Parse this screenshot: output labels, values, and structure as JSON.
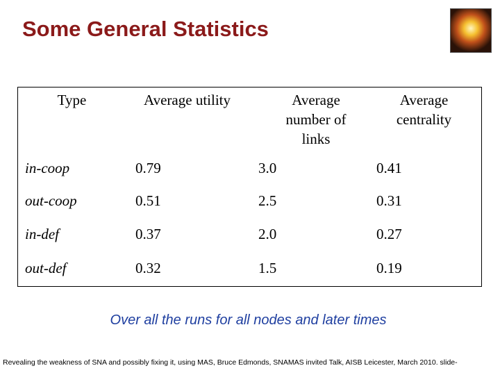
{
  "title": "Some General Statistics",
  "table": {
    "header": [
      "Type",
      "Average utility",
      "Average number of links",
      "Average centrality"
    ],
    "rows": [
      [
        "in-coop",
        "0.79",
        "3.0",
        "0.41"
      ],
      [
        "out-coop",
        "0.51",
        "2.5",
        "0.31"
      ],
      [
        "in-def",
        "0.37",
        "2.0",
        "0.27"
      ],
      [
        "out-def",
        "0.32",
        "1.5",
        "0.19"
      ]
    ]
  },
  "caption": "Over all the runs for all nodes and later times",
  "footer": "Revealing the weakness of SNA and possibly fixing it, using MAS, Bruce Edmonds, SNAMAS invited Talk, AISB Leicester, March 2010. slide-"
}
